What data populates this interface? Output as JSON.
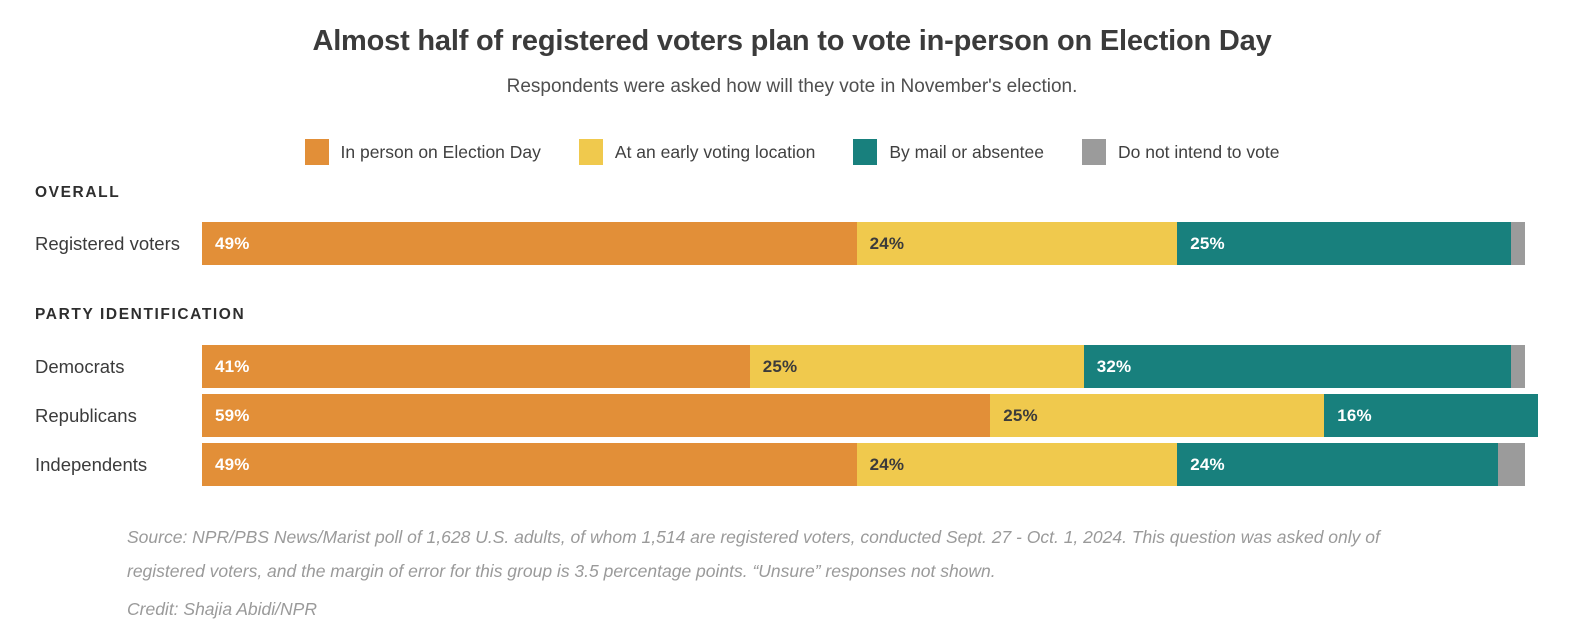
{
  "header": {
    "title": "Almost half of registered voters plan to vote in-person on Election Day",
    "subtitle": "Respondents were asked how will they vote in November's election."
  },
  "colors": {
    "background": "#FFFFFF",
    "orange": "#E28F38",
    "yellow": "#F0C94D",
    "teal": "#18807D",
    "gray": "#9B9B9B",
    "title_text": "#3B3B3B",
    "footer_text": "#9A9A9A"
  },
  "legend": {
    "items": [
      {
        "label": "In person on Election Day",
        "color": "#E28F38"
      },
      {
        "label": "At an early voting location",
        "color": "#F0C94D"
      },
      {
        "label": "By mail or absentee",
        "color": "#18807D"
      },
      {
        "label": "Do not intend to vote",
        "color": "#9B9B9B"
      }
    ]
  },
  "chart_data": {
    "type": "bar",
    "variant": "horizontal-stacked",
    "value_unit": "percent",
    "xlim": [
      0,
      100
    ],
    "grid": false,
    "legend_position": "top-center",
    "series": [
      {
        "name": "In person on Election Day",
        "color": "#E28F38",
        "value_label_color": "#FFFFFF"
      },
      {
        "name": "At an early voting location",
        "color": "#F0C94D",
        "value_label_color": "#3B3B3B"
      },
      {
        "name": "By mail or absentee",
        "color": "#18807D",
        "value_label_color": "#FFFFFF"
      },
      {
        "name": "Do not intend to vote",
        "color": "#9B9B9B",
        "value_label_color": "#FFFFFF"
      }
    ],
    "sections": [
      {
        "heading": "OVERALL",
        "rows": [
          {
            "label": "Registered voters",
            "values": [
              49,
              24,
              25,
              1
            ],
            "value_labels": [
              "49%",
              "24%",
              "25%",
              ""
            ]
          }
        ]
      },
      {
        "heading": "PARTY IDENTIFICATION",
        "rows": [
          {
            "label": "Democrats",
            "values": [
              41,
              25,
              32,
              1
            ],
            "value_labels": [
              "41%",
              "25%",
              "32%",
              ""
            ]
          },
          {
            "label": "Republicans",
            "values": [
              59,
              25,
              16,
              0
            ],
            "value_labels": [
              "59%",
              "25%",
              "16%",
              ""
            ]
          },
          {
            "label": "Independents",
            "values": [
              49,
              24,
              24,
              2
            ],
            "value_labels": [
              "49%",
              "24%",
              "24%",
              ""
            ]
          }
        ]
      }
    ]
  },
  "footer": {
    "source": "Source: NPR/PBS News/Marist poll of 1,628 U.S. adults, of whom 1,514 are registered voters, conducted Sept. 27 - Oct. 1, 2024. This question was asked only of registered voters, and the margin of error for this group is 3.5 percentage points. “Unsure” responses not shown.",
    "credit": "Credit: Shajia Abidi/NPR"
  }
}
